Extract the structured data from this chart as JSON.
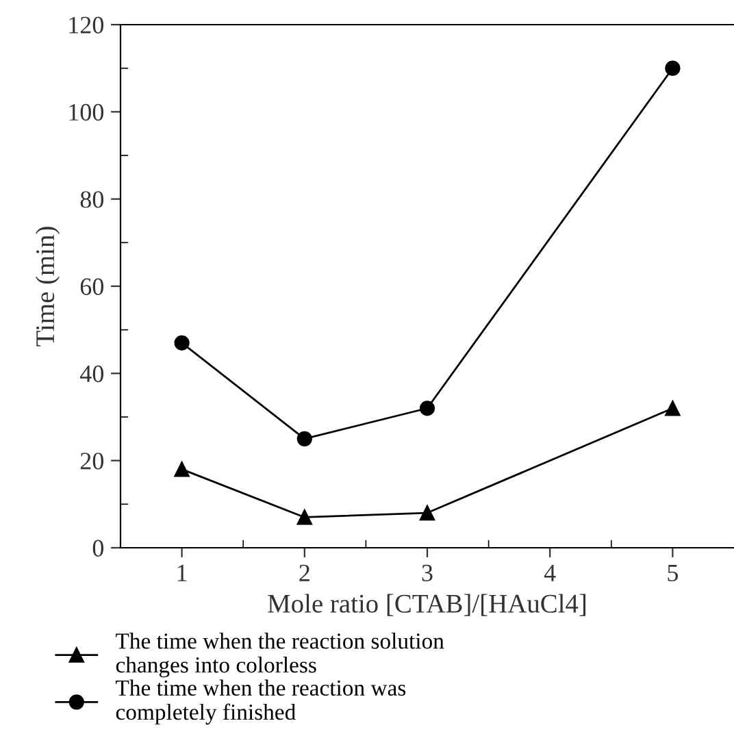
{
  "chart_data": {
    "type": "line",
    "xlabel": "Mole ratio [CTAB]/[HAuCl4]",
    "ylabel": "Time (min)",
    "x": [
      1,
      2,
      3,
      5
    ],
    "series": [
      {
        "name": "The time when the reaction solution\nchanges into colorless",
        "color": "#000000",
        "marker": "triangle",
        "values": [
          18,
          7,
          8,
          32
        ]
      },
      {
        "name": "The time when the reaction was\ncompletely finished",
        "color": "#000000",
        "marker": "circle",
        "values": [
          47,
          25,
          32,
          110
        ]
      }
    ],
    "xlim": [
      0.5,
      5.5
    ],
    "ylim": [
      0,
      120
    ],
    "xticks": [
      1,
      {
        "value": 1.5,
        "label": null
      },
      2,
      {
        "value": 2.5,
        "label": null
      },
      3,
      {
        "value": 3.5,
        "label": null
      },
      4,
      {
        "value": 4.5,
        "label": null
      },
      5
    ],
    "yticks": [
      0,
      {
        "value": 10,
        "label": null
      },
      20,
      {
        "value": 30,
        "label": null
      },
      40,
      {
        "value": 50,
        "label": null
      },
      60,
      {
        "value": 70,
        "label": null
      },
      80,
      {
        "value": 90,
        "label": null
      },
      100,
      {
        "value": 110,
        "label": null
      },
      120
    ],
    "grid": false,
    "legend": "bottom",
    "line_style": "solid"
  }
}
